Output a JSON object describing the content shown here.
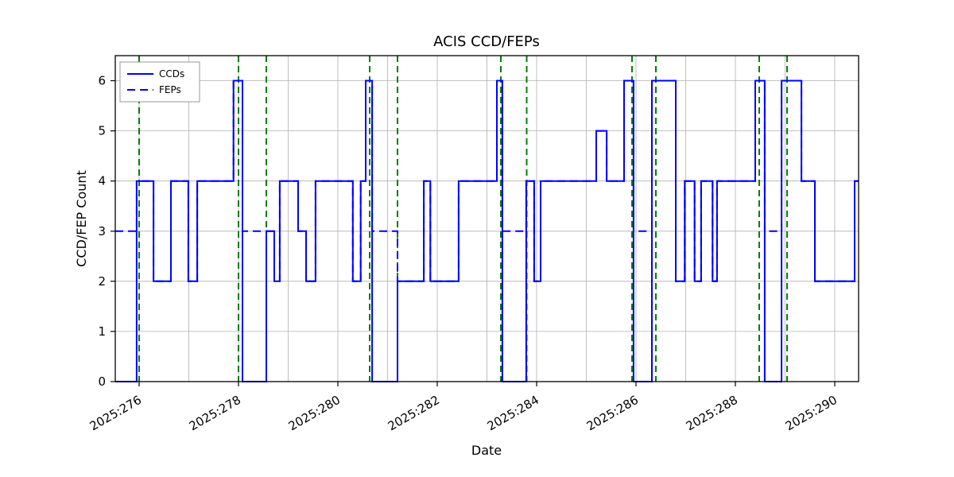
{
  "figure": {
    "title": "ACIS CCD/FEPs"
  },
  "chart_data": {
    "type": "line",
    "title": "ACIS CCD/FEPs",
    "xlabel": "Date",
    "ylabel": "CCD/FEP Count",
    "grid": true,
    "legend_position": "upper left",
    "xlim": [
      275.52,
      290.48
    ],
    "ylim": [
      0,
      6.5
    ],
    "x_ticks": [
      276,
      278,
      280,
      282,
      284,
      286,
      288,
      290
    ],
    "x_tick_labels": [
      "2025:276",
      "2025:278",
      "2025:280",
      "2025:282",
      "2025:284",
      "2025:286",
      "2025:288",
      "2025:290"
    ],
    "x_grid_interval": 1,
    "y_ticks": [
      0,
      1,
      2,
      3,
      4,
      5,
      6
    ],
    "colors": {
      "series": "#0000ff",
      "event_lines": "#008000",
      "grid": "#b0b0b0"
    },
    "series": [
      {
        "name": "CCDs",
        "line_style": "solid",
        "drawstyle": "steps-post",
        "points": [
          [
            275.52,
            0
          ],
          [
            275.95,
            4
          ],
          [
            276.29,
            2
          ],
          [
            276.64,
            4
          ],
          [
            276.99,
            2
          ],
          [
            277.17,
            4
          ],
          [
            277.9,
            6
          ],
          [
            278.08,
            0
          ],
          [
            278.56,
            3
          ],
          [
            278.72,
            2
          ],
          [
            278.83,
            4
          ],
          [
            279.2,
            3
          ],
          [
            279.36,
            2
          ],
          [
            279.55,
            4
          ],
          [
            280.3,
            2
          ],
          [
            280.46,
            4
          ],
          [
            280.56,
            6
          ],
          [
            280.69,
            0
          ],
          [
            281.2,
            2
          ],
          [
            281.73,
            4
          ],
          [
            281.86,
            2
          ],
          [
            282.43,
            4
          ],
          [
            283.2,
            6
          ],
          [
            283.31,
            0
          ],
          [
            283.79,
            4
          ],
          [
            283.95,
            2
          ],
          [
            284.08,
            4
          ],
          [
            285.2,
            5
          ],
          [
            285.41,
            4
          ],
          [
            285.76,
            6
          ],
          [
            285.95,
            0
          ],
          [
            286.32,
            6
          ],
          [
            286.8,
            2
          ],
          [
            286.98,
            4
          ],
          [
            287.18,
            2
          ],
          [
            287.31,
            4
          ],
          [
            287.54,
            2
          ],
          [
            287.63,
            4
          ],
          [
            288.4,
            6
          ],
          [
            288.59,
            0
          ],
          [
            288.93,
            6
          ],
          [
            289.33,
            4
          ],
          [
            289.6,
            2
          ],
          [
            290.4,
            4
          ]
        ]
      },
      {
        "name": "FEPs",
        "line_style": "dashed",
        "drawstyle": "steps-post",
        "points": [
          [
            275.52,
            3
          ],
          [
            275.95,
            4
          ],
          [
            276.29,
            2
          ],
          [
            276.64,
            4
          ],
          [
            276.99,
            2
          ],
          [
            277.17,
            4
          ],
          [
            277.9,
            6
          ],
          [
            278.08,
            3
          ],
          [
            278.72,
            2
          ],
          [
            278.83,
            4
          ],
          [
            279.2,
            3
          ],
          [
            279.36,
            2
          ],
          [
            279.55,
            4
          ],
          [
            280.3,
            2
          ],
          [
            280.46,
            4
          ],
          [
            280.56,
            6
          ],
          [
            280.69,
            3
          ],
          [
            281.2,
            2
          ],
          [
            281.73,
            4
          ],
          [
            281.86,
            2
          ],
          [
            282.43,
            4
          ],
          [
            283.2,
            6
          ],
          [
            283.31,
            3
          ],
          [
            283.79,
            4
          ],
          [
            283.95,
            2
          ],
          [
            284.08,
            4
          ],
          [
            285.2,
            5
          ],
          [
            285.41,
            4
          ],
          [
            285.76,
            6
          ],
          [
            285.95,
            3
          ],
          [
            286.32,
            6
          ],
          [
            286.8,
            2
          ],
          [
            286.98,
            4
          ],
          [
            287.18,
            2
          ],
          [
            287.31,
            4
          ],
          [
            287.54,
            2
          ],
          [
            287.63,
            4
          ],
          [
            288.4,
            6
          ],
          [
            288.59,
            3
          ],
          [
            288.93,
            6
          ],
          [
            289.33,
            4
          ],
          [
            289.6,
            2
          ],
          [
            290.4,
            4
          ]
        ]
      }
    ],
    "event_lines": {
      "style": "dashed",
      "x": [
        276.0,
        278.0,
        278.56,
        280.64,
        281.2,
        283.28,
        283.8,
        285.92,
        286.4,
        288.48,
        289.04
      ]
    }
  }
}
